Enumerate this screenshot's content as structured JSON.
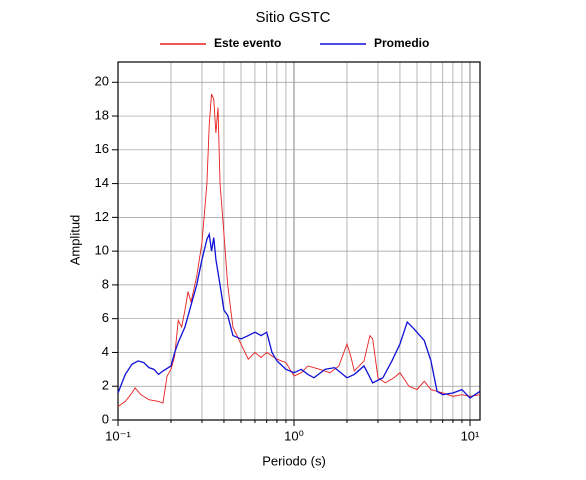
{
  "chart_data": {
    "type": "line",
    "title": "Sitio GSTC",
    "xlabel": "Periodo (s)",
    "ylabel": "Amplitud",
    "xscale": "log",
    "grid": true,
    "xlim": [
      0.1,
      11.4
    ],
    "ylim": [
      0,
      21.2
    ],
    "xticks": [
      {
        "value": 0.1,
        "label": "10⁻¹"
      },
      {
        "value": 1,
        "label": "10⁰"
      },
      {
        "value": 10,
        "label": "10¹"
      }
    ],
    "xminorticks": [
      0.2,
      0.3,
      0.4,
      0.5,
      0.6,
      0.7,
      0.8,
      0.9,
      2,
      3,
      4,
      5,
      6,
      7,
      8,
      9
    ],
    "yticks": [
      0,
      2,
      4,
      6,
      8,
      10,
      12,
      14,
      16,
      18,
      20
    ],
    "series": [
      {
        "name": "Este evento",
        "color": "#e8201e",
        "x": [
          0.1,
          0.11,
          0.12,
          0.125,
          0.135,
          0.15,
          0.17,
          0.18,
          0.19,
          0.2,
          0.21,
          0.22,
          0.23,
          0.24,
          0.25,
          0.26,
          0.28,
          0.3,
          0.32,
          0.33,
          0.34,
          0.35,
          0.36,
          0.37,
          0.38,
          0.4,
          0.42,
          0.45,
          0.5,
          0.55,
          0.6,
          0.65,
          0.7,
          0.8,
          0.9,
          1.0,
          1.1,
          1.2,
          1.4,
          1.6,
          1.8,
          2.0,
          2.1,
          2.2,
          2.5,
          2.7,
          2.8,
          3.0,
          3.3,
          3.7,
          4.0,
          4.5,
          5.0,
          5.5,
          6.0,
          7,
          8,
          9,
          10,
          11.4
        ],
        "values": [
          0.8,
          1.1,
          1.6,
          1.9,
          1.5,
          1.2,
          1.1,
          1.0,
          2.6,
          3.0,
          3.8,
          5.9,
          5.5,
          6.5,
          7.6,
          7.0,
          8.5,
          10.5,
          14,
          17.5,
          19.3,
          19.0,
          17,
          18.5,
          14,
          11,
          8,
          5.5,
          4.5,
          3.6,
          4.0,
          3.7,
          4.0,
          3.6,
          3.4,
          2.6,
          2.8,
          3.2,
          3.0,
          2.8,
          3.2,
          4.5,
          3.8,
          2.9,
          3.5,
          5.0,
          4.8,
          2.5,
          2.2,
          2.5,
          2.8,
          2.0,
          1.8,
          2.3,
          1.8,
          1.6,
          1.4,
          1.5,
          1.4,
          1.5
        ]
      },
      {
        "name": "Promedio",
        "color": "#1010d8",
        "x": [
          0.1,
          0.11,
          0.12,
          0.13,
          0.14,
          0.15,
          0.16,
          0.17,
          0.18,
          0.2,
          0.21,
          0.22,
          0.24,
          0.26,
          0.28,
          0.3,
          0.32,
          0.33,
          0.34,
          0.35,
          0.36,
          0.38,
          0.4,
          0.42,
          0.45,
          0.5,
          0.55,
          0.6,
          0.65,
          0.7,
          0.75,
          0.8,
          0.9,
          1.0,
          1.1,
          1.2,
          1.3,
          1.5,
          1.7,
          2.0,
          2.2,
          2.5,
          2.8,
          3.2,
          3.6,
          4.0,
          4.4,
          4.8,
          5.5,
          6.0,
          6.5,
          7,
          8,
          9,
          10,
          11.4
        ],
        "values": [
          1.6,
          2.7,
          3.3,
          3.5,
          3.4,
          3.1,
          3.0,
          2.7,
          2.9,
          3.2,
          4.0,
          4.6,
          5.5,
          6.8,
          8.0,
          9.5,
          10.7,
          11.0,
          10.0,
          10.8,
          9.5,
          8.0,
          6.5,
          6.2,
          5.0,
          4.8,
          5.0,
          5.2,
          5.0,
          5.2,
          4.0,
          3.5,
          3.0,
          2.8,
          3.0,
          2.7,
          2.5,
          3.0,
          3.1,
          2.5,
          2.7,
          3.2,
          2.2,
          2.5,
          3.5,
          4.5,
          5.8,
          5.4,
          4.7,
          3.5,
          1.7,
          1.5,
          1.6,
          1.8,
          1.3,
          1.7
        ]
      }
    ]
  }
}
